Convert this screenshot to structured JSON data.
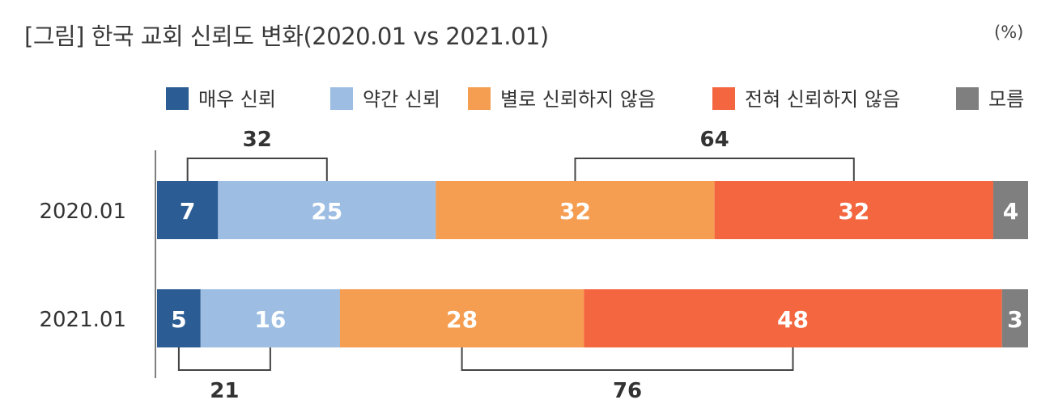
{
  "title": "[그림] 한국 교회 신뢰도 변화(2020.01 vs 2021.01)",
  "unit": "(%)",
  "chart_data": {
    "type": "bar",
    "orientation": "horizontal",
    "stacked": true,
    "categories": [
      "2020.01",
      "2021.01"
    ],
    "series": [
      {
        "name": "매우 신뢰",
        "color": "#2b5d94",
        "values": [
          7,
          5
        ]
      },
      {
        "name": "약간 신뢰",
        "color": "#9dbde2",
        "values": [
          25,
          16
        ]
      },
      {
        "name": "별로 신뢰하지 않음",
        "color": "#f59d51",
        "values": [
          32,
          28
        ]
      },
      {
        "name": "전혀 신뢰하지 않음",
        "color": "#f4663f",
        "values": [
          32,
          48
        ]
      },
      {
        "name": "모름",
        "color": "#7f7f7f",
        "values": [
          4,
          3
        ]
      }
    ],
    "legend_position": "top",
    "brackets": [
      {
        "category": "2020.01",
        "from_series": 0,
        "to_series": 1,
        "value": 32,
        "placement": "above"
      },
      {
        "category": "2020.01",
        "from_series": 2,
        "to_series": 3,
        "value": 64,
        "placement": "above"
      },
      {
        "category": "2021.01",
        "from_series": 0,
        "to_series": 1,
        "value": 21,
        "placement": "below"
      },
      {
        "category": "2021.01",
        "from_series": 2,
        "to_series": 3,
        "value": 76,
        "placement": "below"
      }
    ]
  }
}
